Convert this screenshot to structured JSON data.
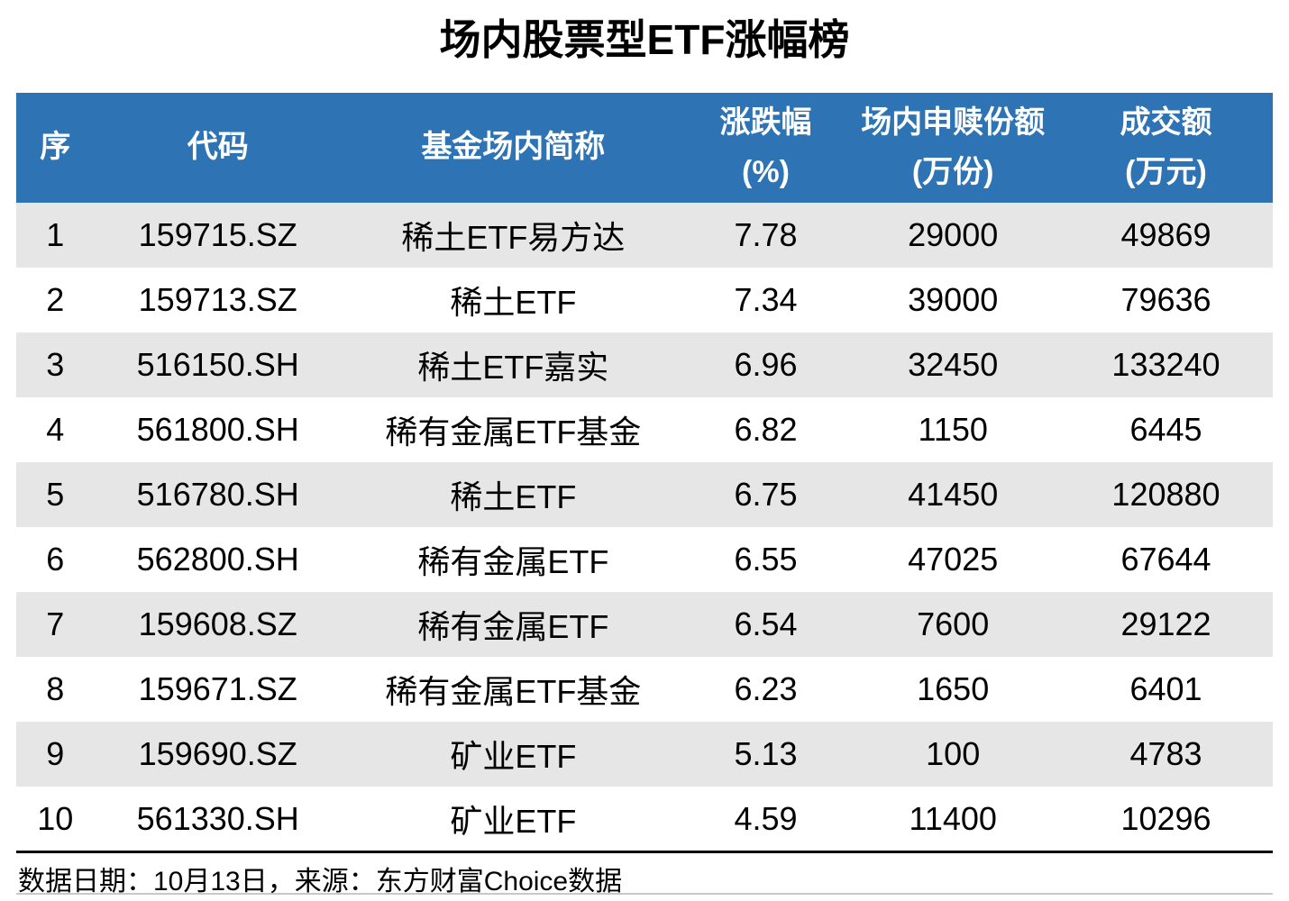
{
  "title": "场内股票型ETF涨幅榜",
  "table": {
    "headers": [
      "序",
      "代码",
      "基金场内简称",
      "涨跌幅\n(%)",
      "场内申赎份额\n(万份)",
      "成交额\n(万元)"
    ],
    "rows": [
      [
        "1",
        "159715.SZ",
        "稀土ETF易方达",
        "7.78",
        "29000",
        "49869"
      ],
      [
        "2",
        "159713.SZ",
        "稀土ETF",
        "7.34",
        "39000",
        "79636"
      ],
      [
        "3",
        "516150.SH",
        "稀土ETF嘉实",
        "6.96",
        "32450",
        "133240"
      ],
      [
        "4",
        "561800.SH",
        "稀有金属ETF基金",
        "6.82",
        "1150",
        "6445"
      ],
      [
        "5",
        "516780.SH",
        "稀土ETF",
        "6.75",
        "41450",
        "120880"
      ],
      [
        "6",
        "562800.SH",
        "稀有金属ETF",
        "6.55",
        "47025",
        "67644"
      ],
      [
        "7",
        "159608.SZ",
        "稀有金属ETF",
        "6.54",
        "7600",
        "29122"
      ],
      [
        "8",
        "159671.SZ",
        "稀有金属ETF基金",
        "6.23",
        "1650",
        "6401"
      ],
      [
        "9",
        "159690.SZ",
        "矿业ETF",
        "5.13",
        "100",
        "4783"
      ],
      [
        "10",
        "561330.SH",
        "矿业ETF",
        "4.59",
        "11400",
        "10296"
      ]
    ]
  },
  "footer": {
    "source": "数据日期：10月13日，来源：东方财富Choice数据"
  },
  "colors": {
    "header_bg": "#2E73B4",
    "header_text": "#FFFFFF",
    "stripe_row": "#E6E6E6",
    "text": "#000000"
  },
  "chart_data": {
    "type": "table",
    "title": "场内股票型ETF涨幅榜",
    "columns": [
      "序",
      "代码",
      "基金场内简称",
      "涨跌幅(%)",
      "场内申赎份额(万份)",
      "成交额(万元)"
    ],
    "rows": [
      [
        1,
        "159715.SZ",
        "稀土ETF易方达",
        7.78,
        29000,
        49869
      ],
      [
        2,
        "159713.SZ",
        "稀土ETF",
        7.34,
        39000,
        79636
      ],
      [
        3,
        "516150.SH",
        "稀土ETF嘉实",
        6.96,
        32450,
        133240
      ],
      [
        4,
        "561800.SH",
        "稀有金属ETF基金",
        6.82,
        1150,
        6445
      ],
      [
        5,
        "516780.SH",
        "稀土ETF",
        6.75,
        41450,
        120880
      ],
      [
        6,
        "562800.SH",
        "稀有金属ETF",
        6.55,
        47025,
        67644
      ],
      [
        7,
        "159608.SZ",
        "稀有金属ETF",
        6.54,
        7600,
        29122
      ],
      [
        8,
        "159671.SZ",
        "稀有金属ETF基金",
        6.23,
        1650,
        6401
      ],
      [
        9,
        "159690.SZ",
        "矿业ETF",
        5.13,
        100,
        4783
      ],
      [
        10,
        "561330.SH",
        "矿业ETF",
        4.59,
        11400,
        10296
      ]
    ],
    "source_note": "数据日期：10月13日，来源：东方财富Choice数据"
  }
}
